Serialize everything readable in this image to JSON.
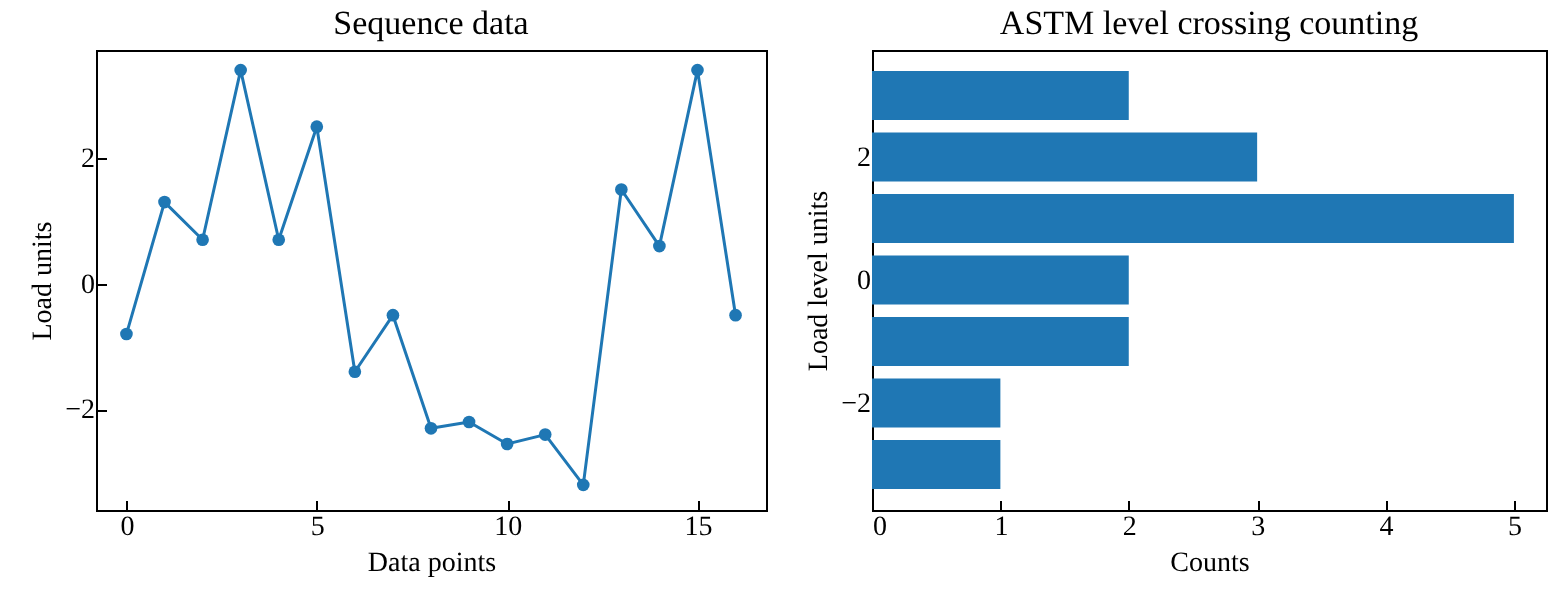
{
  "chart_data": [
    {
      "type": "line",
      "title": "Sequence data",
      "xlabel": "Data points",
      "ylabel": "Load units",
      "marker": "circle",
      "grid": false,
      "x": [
        0,
        1,
        2,
        3,
        4,
        5,
        6,
        7,
        8,
        9,
        10,
        11,
        12,
        13,
        14,
        15,
        16
      ],
      "series": [
        {
          "color": "#1f77b4",
          "values": [
            -0.8,
            1.3,
            0.7,
            3.4,
            0.7,
            2.5,
            -1.4,
            -0.5,
            -2.3,
            -2.2,
            -2.55,
            -2.4,
            -3.2,
            1.5,
            0.6,
            3.4,
            -0.5
          ]
        }
      ],
      "xlim": [
        -0.8,
        16.8
      ],
      "xticks": [
        0,
        5,
        10,
        15
      ],
      "ylim": [
        -3.6,
        3.72
      ],
      "yticks": [
        -2,
        0,
        2
      ]
    },
    {
      "type": "bar",
      "orientation": "horizontal",
      "title": "ASTM level crossing counting",
      "xlabel": "Counts",
      "ylabel": "Load level units",
      "grid": false,
      "x": [
        3,
        2,
        1,
        0,
        -1,
        -2,
        -3
      ],
      "series": [
        {
          "color": "#1f77b4",
          "values": [
            2,
            3,
            5,
            2,
            2,
            1,
            1
          ]
        }
      ],
      "xlim": [
        0,
        5.25
      ],
      "xticks": [
        0,
        1,
        2,
        3,
        4,
        5
      ],
      "ylim": [
        -3.74,
        3.74
      ],
      "yticks": [
        -2,
        0,
        2
      ]
    }
  ]
}
